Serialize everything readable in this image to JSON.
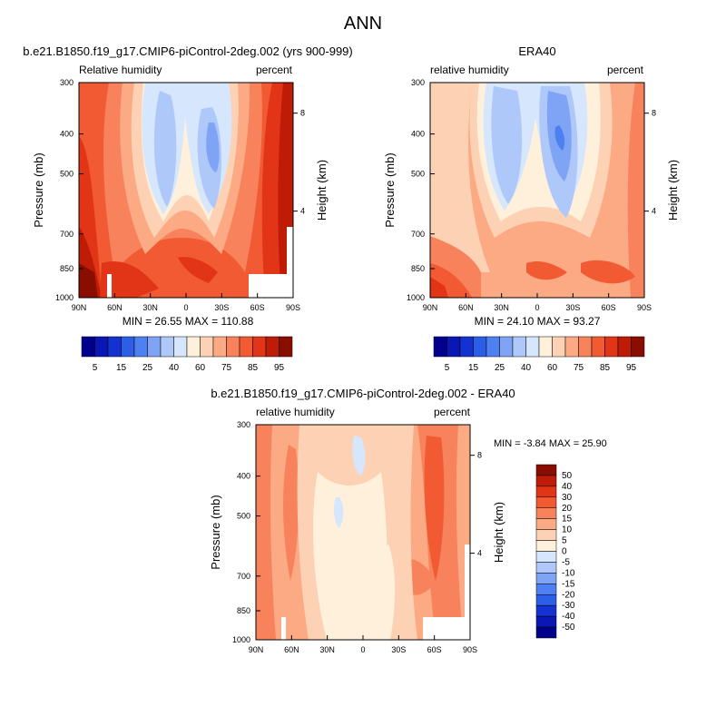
{
  "figure": {
    "title": "ANN"
  },
  "panel_model": {
    "title": "b.e21.B1850.f19_g17.CMIP6-piControl-2deg.002 (yrs 900-999)",
    "left_label": "Relative humidity",
    "right_label": "percent",
    "stats": "MIN =  26.55  MAX = 110.88"
  },
  "panel_obs": {
    "title": "ERA40",
    "left_label": "relative humidity",
    "right_label": "percent",
    "stats": "MIN =  24.10  MAX =  93.27"
  },
  "panel_diff": {
    "title": "b.e21.B1850.f19_g17.CMIP6-piControl-2deg.002 - ERA40",
    "left_label": "relative humidity",
    "right_label": "percent",
    "stats": "MIN =  -3.84  MAX =  25.90"
  },
  "axes": {
    "y_title": "Pressure (mb)",
    "y2_title": "Height (km)",
    "pressure_ticks": [
      "300",
      "400",
      "500",
      "700",
      "850",
      "1000"
    ],
    "lat_ticks": [
      "90N",
      "60N",
      "30N",
      "0",
      "30S",
      "60S",
      "90S"
    ],
    "height_ticks": [
      "8",
      "4"
    ]
  },
  "colorbars": {
    "abs_labels": [
      "5",
      "15",
      "25",
      "40",
      "60",
      "75",
      "85",
      "95"
    ],
    "abs_colors": [
      "#00008c",
      "#0a17b4",
      "#1432d2",
      "#2d5ee8",
      "#4f80f2",
      "#7fa4f6",
      "#aec8f9",
      "#d6e6fd",
      "#fff0dc",
      "#fdd2b4",
      "#fbaa84",
      "#f7825c",
      "#f15a32",
      "#e23416",
      "#be1c06",
      "#8a0e00"
    ],
    "diff_labels": [
      "50",
      "40",
      "30",
      "20",
      "15",
      "10",
      "5",
      "0",
      "-5",
      "-10",
      "-15",
      "-20",
      "-30",
      "-40",
      "-50"
    ],
    "diff_colors": [
      "#8a0e00",
      "#be1c06",
      "#e23416",
      "#f15a32",
      "#f7825c",
      "#fbaa84",
      "#fdd2b4",
      "#fff0dc",
      "#d6e6fd",
      "#aec8f9",
      "#7fa4f6",
      "#4f80f2",
      "#2d5ee8",
      "#1432d2",
      "#0a17b4",
      "#00008c"
    ]
  },
  "chart_data": [
    {
      "type": "heatmap",
      "title": "b.e21.B1850.f19_g17.CMIP6-piControl-2deg.002 (yrs 900-999)",
      "variable": "Relative humidity",
      "units": "percent",
      "xlabel": "",
      "ylabel": "Pressure (mb)",
      "y2label": "Height (km)",
      "x_ticks": [
        "90N",
        "60N",
        "30N",
        "0",
        "30S",
        "60S",
        "90S"
      ],
      "y_ticks": [
        300,
        400,
        500,
        700,
        850,
        1000
      ],
      "y_scale": "log",
      "ylim": [
        1000,
        300
      ],
      "min": 26.55,
      "max": 110.88
    },
    {
      "type": "heatmap",
      "title": "ERA40",
      "variable": "relative humidity",
      "units": "percent",
      "xlabel": "",
      "ylabel": "Pressure (mb)",
      "y2label": "Height (km)",
      "x_ticks": [
        "90N",
        "60N",
        "30N",
        "0",
        "30S",
        "60S",
        "90S"
      ],
      "y_ticks": [
        300,
        400,
        500,
        700,
        850,
        1000
      ],
      "y_scale": "log",
      "ylim": [
        1000,
        300
      ],
      "min": 24.1,
      "max": 93.27
    },
    {
      "type": "heatmap",
      "title": "b.e21.B1850.f19_g17.CMIP6-piControl-2deg.002 - ERA40",
      "variable": "relative humidity",
      "units": "percent",
      "xlabel": "",
      "ylabel": "Pressure (mb)",
      "y2label": "Height (km)",
      "x_ticks": [
        "90N",
        "60N",
        "30N",
        "0",
        "30S",
        "60S",
        "90S"
      ],
      "y_ticks": [
        300,
        400,
        500,
        700,
        850,
        1000
      ],
      "y_scale": "log",
      "ylim": [
        1000,
        300
      ],
      "min": -3.84,
      "max": 25.9
    }
  ]
}
